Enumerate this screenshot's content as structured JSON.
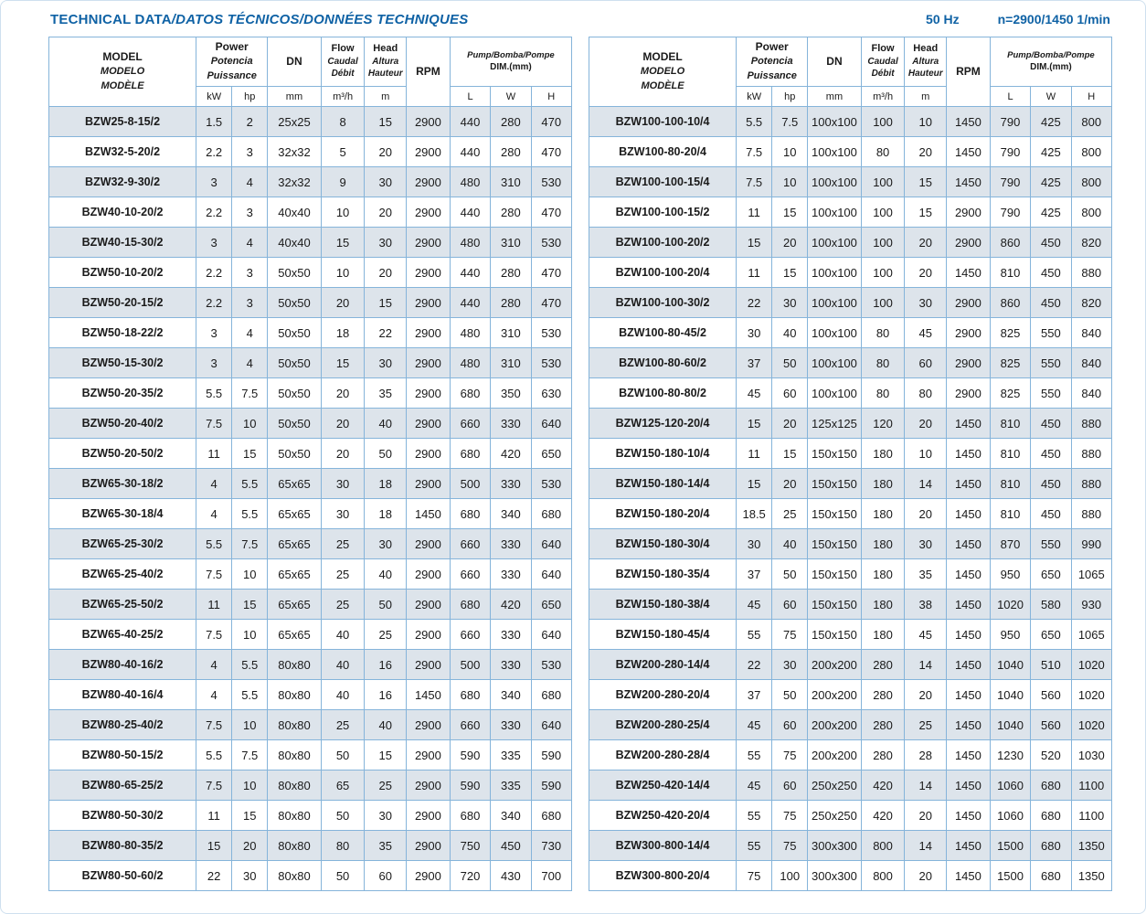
{
  "page": {
    "title_main": "TECHNICAL DATA",
    "title_rest": "/DATOS TÉCNICOS/DONNÉES TECHNIQUES",
    "frequency": "50 Hz",
    "speed": "n=2900/1450 1/min"
  },
  "colors": {
    "accent_blue": "#0f62a5",
    "grid_border": "#85b4da",
    "outer_border": "#4e94cb",
    "shaded_row": "#dde4eb"
  },
  "table_header": {
    "model": [
      "MODEL",
      "MODELO",
      "MODÈLE"
    ],
    "power": [
      "Power",
      "Potencia",
      "Puissance"
    ],
    "dn": "DN",
    "flow": [
      "Flow",
      "Caudal",
      "Débit"
    ],
    "head": [
      "Head",
      "Altura",
      "Hauteur"
    ],
    "rpm": "RPM",
    "dim": [
      "Pump/Bomba/Pompe",
      "DIM.(mm)"
    ],
    "units": [
      "kW",
      "hp",
      "mm",
      "m³/h",
      "m",
      "L",
      "W",
      "H"
    ]
  },
  "tables": {
    "left": {
      "rows": [
        [
          "BZW25-8-15/2",
          "1.5",
          "2",
          "25x25",
          "8",
          "15",
          "2900",
          "440",
          "280",
          "470"
        ],
        [
          "BZW32-5-20/2",
          "2.2",
          "3",
          "32x32",
          "5",
          "20",
          "2900",
          "440",
          "280",
          "470"
        ],
        [
          "BZW32-9-30/2",
          "3",
          "4",
          "32x32",
          "9",
          "30",
          "2900",
          "480",
          "310",
          "530"
        ],
        [
          "BZW40-10-20/2",
          "2.2",
          "3",
          "40x40",
          "10",
          "20",
          "2900",
          "440",
          "280",
          "470"
        ],
        [
          "BZW40-15-30/2",
          "3",
          "4",
          "40x40",
          "15",
          "30",
          "2900",
          "480",
          "310",
          "530"
        ],
        [
          "BZW50-10-20/2",
          "2.2",
          "3",
          "50x50",
          "10",
          "20",
          "2900",
          "440",
          "280",
          "470"
        ],
        [
          "BZW50-20-15/2",
          "2.2",
          "3",
          "50x50",
          "20",
          "15",
          "2900",
          "440",
          "280",
          "470"
        ],
        [
          "BZW50-18-22/2",
          "3",
          "4",
          "50x50",
          "18",
          "22",
          "2900",
          "480",
          "310",
          "530"
        ],
        [
          "BZW50-15-30/2",
          "3",
          "4",
          "50x50",
          "15",
          "30",
          "2900",
          "480",
          "310",
          "530"
        ],
        [
          "BZW50-20-35/2",
          "5.5",
          "7.5",
          "50x50",
          "20",
          "35",
          "2900",
          "680",
          "350",
          "630"
        ],
        [
          "BZW50-20-40/2",
          "7.5",
          "10",
          "50x50",
          "20",
          "40",
          "2900",
          "660",
          "330",
          "640"
        ],
        [
          "BZW50-20-50/2",
          "11",
          "15",
          "50x50",
          "20",
          "50",
          "2900",
          "680",
          "420",
          "650"
        ],
        [
          "BZW65-30-18/2",
          "4",
          "5.5",
          "65x65",
          "30",
          "18",
          "2900",
          "500",
          "330",
          "530"
        ],
        [
          "BZW65-30-18/4",
          "4",
          "5.5",
          "65x65",
          "30",
          "18",
          "1450",
          "680",
          "340",
          "680"
        ],
        [
          "BZW65-25-30/2",
          "5.5",
          "7.5",
          "65x65",
          "25",
          "30",
          "2900",
          "660",
          "330",
          "640"
        ],
        [
          "BZW65-25-40/2",
          "7.5",
          "10",
          "65x65",
          "25",
          "40",
          "2900",
          "660",
          "330",
          "640"
        ],
        [
          "BZW65-25-50/2",
          "11",
          "15",
          "65x65",
          "25",
          "50",
          "2900",
          "680",
          "420",
          "650"
        ],
        [
          "BZW65-40-25/2",
          "7.5",
          "10",
          "65x65",
          "40",
          "25",
          "2900",
          "660",
          "330",
          "640"
        ],
        [
          "BZW80-40-16/2",
          "4",
          "5.5",
          "80x80",
          "40",
          "16",
          "2900",
          "500",
          "330",
          "530"
        ],
        [
          "BZW80-40-16/4",
          "4",
          "5.5",
          "80x80",
          "40",
          "16",
          "1450",
          "680",
          "340",
          "680"
        ],
        [
          "BZW80-25-40/2",
          "7.5",
          "10",
          "80x80",
          "25",
          "40",
          "2900",
          "660",
          "330",
          "640"
        ],
        [
          "BZW80-50-15/2",
          "5.5",
          "7.5",
          "80x80",
          "50",
          "15",
          "2900",
          "590",
          "335",
          "590"
        ],
        [
          "BZW80-65-25/2",
          "7.5",
          "10",
          "80x80",
          "65",
          "25",
          "2900",
          "590",
          "335",
          "590"
        ],
        [
          "BZW80-50-30/2",
          "11",
          "15",
          "80x80",
          "50",
          "30",
          "2900",
          "680",
          "340",
          "680"
        ],
        [
          "BZW80-80-35/2",
          "15",
          "20",
          "80x80",
          "80",
          "35",
          "2900",
          "750",
          "450",
          "730"
        ],
        [
          "BZW80-50-60/2",
          "22",
          "30",
          "80x80",
          "50",
          "60",
          "2900",
          "720",
          "430",
          "700"
        ]
      ]
    },
    "right": {
      "rows": [
        [
          "BZW100-100-10/4",
          "5.5",
          "7.5",
          "100x100",
          "100",
          "10",
          "1450",
          "790",
          "425",
          "800"
        ],
        [
          "BZW100-80-20/4",
          "7.5",
          "10",
          "100x100",
          "80",
          "20",
          "1450",
          "790",
          "425",
          "800"
        ],
        [
          "BZW100-100-15/4",
          "7.5",
          "10",
          "100x100",
          "100",
          "15",
          "1450",
          "790",
          "425",
          "800"
        ],
        [
          "BZW100-100-15/2",
          "11",
          "15",
          "100x100",
          "100",
          "15",
          "2900",
          "790",
          "425",
          "800"
        ],
        [
          "BZW100-100-20/2",
          "15",
          "20",
          "100x100",
          "100",
          "20",
          "2900",
          "860",
          "450",
          "820"
        ],
        [
          "BZW100-100-20/4",
          "11",
          "15",
          "100x100",
          "100",
          "20",
          "1450",
          "810",
          "450",
          "880"
        ],
        [
          "BZW100-100-30/2",
          "22",
          "30",
          "100x100",
          "100",
          "30",
          "2900",
          "860",
          "450",
          "820"
        ],
        [
          "BZW100-80-45/2",
          "30",
          "40",
          "100x100",
          "80",
          "45",
          "2900",
          "825",
          "550",
          "840"
        ],
        [
          "BZW100-80-60/2",
          "37",
          "50",
          "100x100",
          "80",
          "60",
          "2900",
          "825",
          "550",
          "840"
        ],
        [
          "BZW100-80-80/2",
          "45",
          "60",
          "100x100",
          "80",
          "80",
          "2900",
          "825",
          "550",
          "840"
        ],
        [
          "BZW125-120-20/4",
          "15",
          "20",
          "125x125",
          "120",
          "20",
          "1450",
          "810",
          "450",
          "880"
        ],
        [
          "BZW150-180-10/4",
          "11",
          "15",
          "150x150",
          "180",
          "10",
          "1450",
          "810",
          "450",
          "880"
        ],
        [
          "BZW150-180-14/4",
          "15",
          "20",
          "150x150",
          "180",
          "14",
          "1450",
          "810",
          "450",
          "880"
        ],
        [
          "BZW150-180-20/4",
          "18.5",
          "25",
          "150x150",
          "180",
          "20",
          "1450",
          "810",
          "450",
          "880"
        ],
        [
          "BZW150-180-30/4",
          "30",
          "40",
          "150x150",
          "180",
          "30",
          "1450",
          "870",
          "550",
          "990"
        ],
        [
          "BZW150-180-35/4",
          "37",
          "50",
          "150x150",
          "180",
          "35",
          "1450",
          "950",
          "650",
          "1065"
        ],
        [
          "BZW150-180-38/4",
          "45",
          "60",
          "150x150",
          "180",
          "38",
          "1450",
          "1020",
          "580",
          "930"
        ],
        [
          "BZW150-180-45/4",
          "55",
          "75",
          "150x150",
          "180",
          "45",
          "1450",
          "950",
          "650",
          "1065"
        ],
        [
          "BZW200-280-14/4",
          "22",
          "30",
          "200x200",
          "280",
          "14",
          "1450",
          "1040",
          "510",
          "1020"
        ],
        [
          "BZW200-280-20/4",
          "37",
          "50",
          "200x200",
          "280",
          "20",
          "1450",
          "1040",
          "560",
          "1020"
        ],
        [
          "BZW200-280-25/4",
          "45",
          "60",
          "200x200",
          "280",
          "25",
          "1450",
          "1040",
          "560",
          "1020"
        ],
        [
          "BZW200-280-28/4",
          "55",
          "75",
          "200x200",
          "280",
          "28",
          "1450",
          "1230",
          "520",
          "1030"
        ],
        [
          "BZW250-420-14/4",
          "45",
          "60",
          "250x250",
          "420",
          "14",
          "1450",
          "1060",
          "680",
          "1100"
        ],
        [
          "BZW250-420-20/4",
          "55",
          "75",
          "250x250",
          "420",
          "20",
          "1450",
          "1060",
          "680",
          "1100"
        ],
        [
          "BZW300-800-14/4",
          "55",
          "75",
          "300x300",
          "800",
          "14",
          "1450",
          "1500",
          "680",
          "1350"
        ],
        [
          "BZW300-800-20/4",
          "75",
          "100",
          "300x300",
          "800",
          "20",
          "1450",
          "1500",
          "680",
          "1350"
        ]
      ]
    }
  }
}
